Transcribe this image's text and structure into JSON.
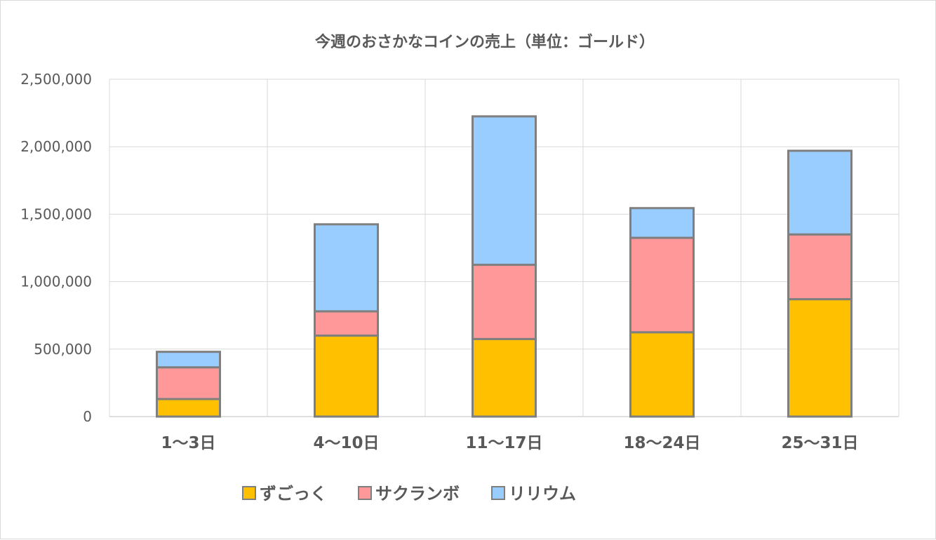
{
  "chart_data": {
    "type": "bar",
    "stacked": true,
    "title": "今週のおさかなコインの売上（単位：ゴールド）",
    "xlabel": "",
    "ylabel": "",
    "categories": [
      "1～3日",
      "4～10日",
      "11～17日",
      "18～24日",
      "25～31日"
    ],
    "series": [
      {
        "name": "ずごっく",
        "color": "#ffc000",
        "values": [
          130000,
          600000,
          575000,
          625000,
          870000
        ]
      },
      {
        "name": "サクランボ",
        "color": "#ff9999",
        "values": [
          235000,
          180000,
          550000,
          700000,
          480000
        ]
      },
      {
        "name": "リリウム",
        "color": "#99ccff",
        "values": [
          115000,
          645000,
          1100000,
          220000,
          620000
        ]
      }
    ],
    "ylim": [
      0,
      2500000
    ],
    "yticks": [
      0,
      500000,
      1000000,
      1500000,
      2000000,
      2500000
    ],
    "ytick_labels": [
      "0",
      "500,000",
      "1,000,000",
      "1,500,000",
      "2,000,000",
      "2,500,000"
    ],
    "grid": true,
    "legend_position": "bottom"
  }
}
